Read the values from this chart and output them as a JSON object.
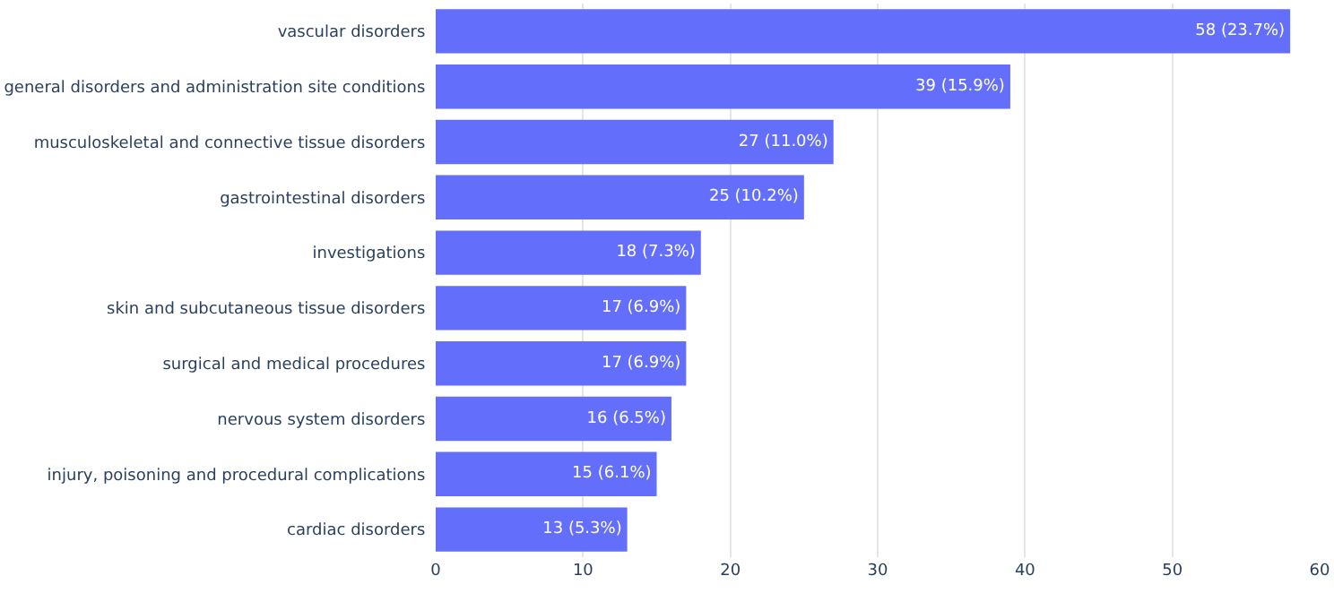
{
  "chart_data": {
    "type": "bar",
    "orientation": "horizontal",
    "categories": [
      "vascular disorders",
      "general disorders and administration site conditions",
      "musculoskeletal and connective tissue disorders",
      "gastrointestinal disorders",
      "investigations",
      "skin and subcutaneous tissue disorders",
      "surgical and medical procedures",
      "nervous system disorders",
      "injury, poisoning and procedural complications",
      "cardiac disorders"
    ],
    "values": [
      58,
      39,
      27,
      25,
      18,
      17,
      17,
      16,
      15,
      13
    ],
    "value_labels": [
      "58 (23.7%)",
      "39 (15.9%)",
      "27 (11.0%)",
      "25 (10.2%)",
      "18 (7.3%)",
      "17 (6.9%)",
      "17 (6.9%)",
      "16 (6.5%)",
      "15 (6.1%)",
      "13 (5.3%)"
    ],
    "color": "#636efa",
    "xlim": [
      0,
      60
    ],
    "xticks": [
      0,
      10,
      20,
      30,
      40,
      50,
      60
    ],
    "grid": "x"
  }
}
